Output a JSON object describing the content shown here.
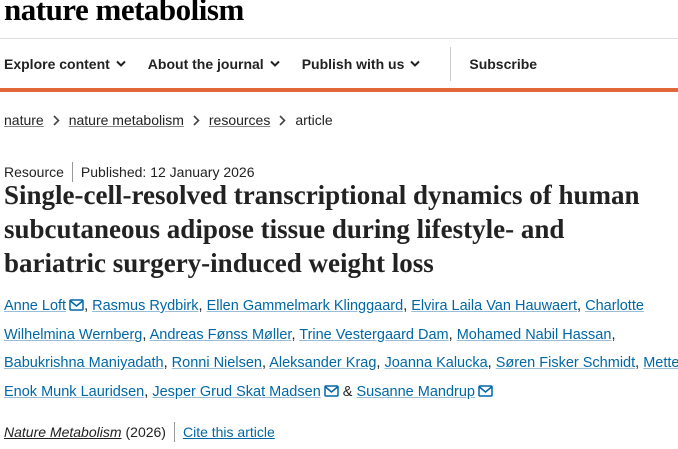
{
  "header": {
    "logo": "nature metabolism"
  },
  "nav": {
    "items": [
      {
        "label": "Explore content",
        "dropdown": true
      },
      {
        "label": "About the journal",
        "dropdown": true
      },
      {
        "label": "Publish with us",
        "dropdown": true
      },
      {
        "label": "Subscribe",
        "dropdown": false
      }
    ]
  },
  "breadcrumb": {
    "items": [
      "nature",
      "nature metabolism",
      "resources",
      "article"
    ]
  },
  "article": {
    "type": "Resource",
    "published": "Published: 12 January 2026",
    "title": "Single-cell-resolved transcriptional dynamics of human subcutaneous adipose tissue during lifestyle- and bariatric surgery-induced weight loss",
    "separator": ",",
    "conjunction": "&",
    "authors": [
      {
        "name": "Anne Loft",
        "email": true
      },
      {
        "name": "Rasmus Rydbirk",
        "email": false
      },
      {
        "name": "Ellen Gammelmark Klinggaard",
        "email": false
      },
      {
        "name": "Elvira Laila Van Hauwaert",
        "email": false
      },
      {
        "name": "Charlotte Wilhelmina Wernberg",
        "email": false
      },
      {
        "name": "Andreas Fønss Møller",
        "email": false
      },
      {
        "name": "Trine Vestergaard Dam",
        "email": false
      },
      {
        "name": "Mohamed Nabil Hassan",
        "email": false
      },
      {
        "name": "Babukrishna Maniyadath",
        "email": false
      },
      {
        "name": "Ronni Nielsen",
        "email": false
      },
      {
        "name": "Aleksander Krag",
        "email": false
      },
      {
        "name": "Joanna Kalucka",
        "email": false
      },
      {
        "name": "Søren Fisker Schmidt",
        "email": false
      },
      {
        "name": "Mette Enok Munk Lauridsen",
        "email": false
      },
      {
        "name": "Jesper Grud Skat Madsen",
        "email": true
      },
      {
        "name": "Susanne Mandrup",
        "email": true
      }
    ],
    "journal": "Nature Metabolism",
    "year": "(2026)",
    "cite": "Cite this article"
  }
}
